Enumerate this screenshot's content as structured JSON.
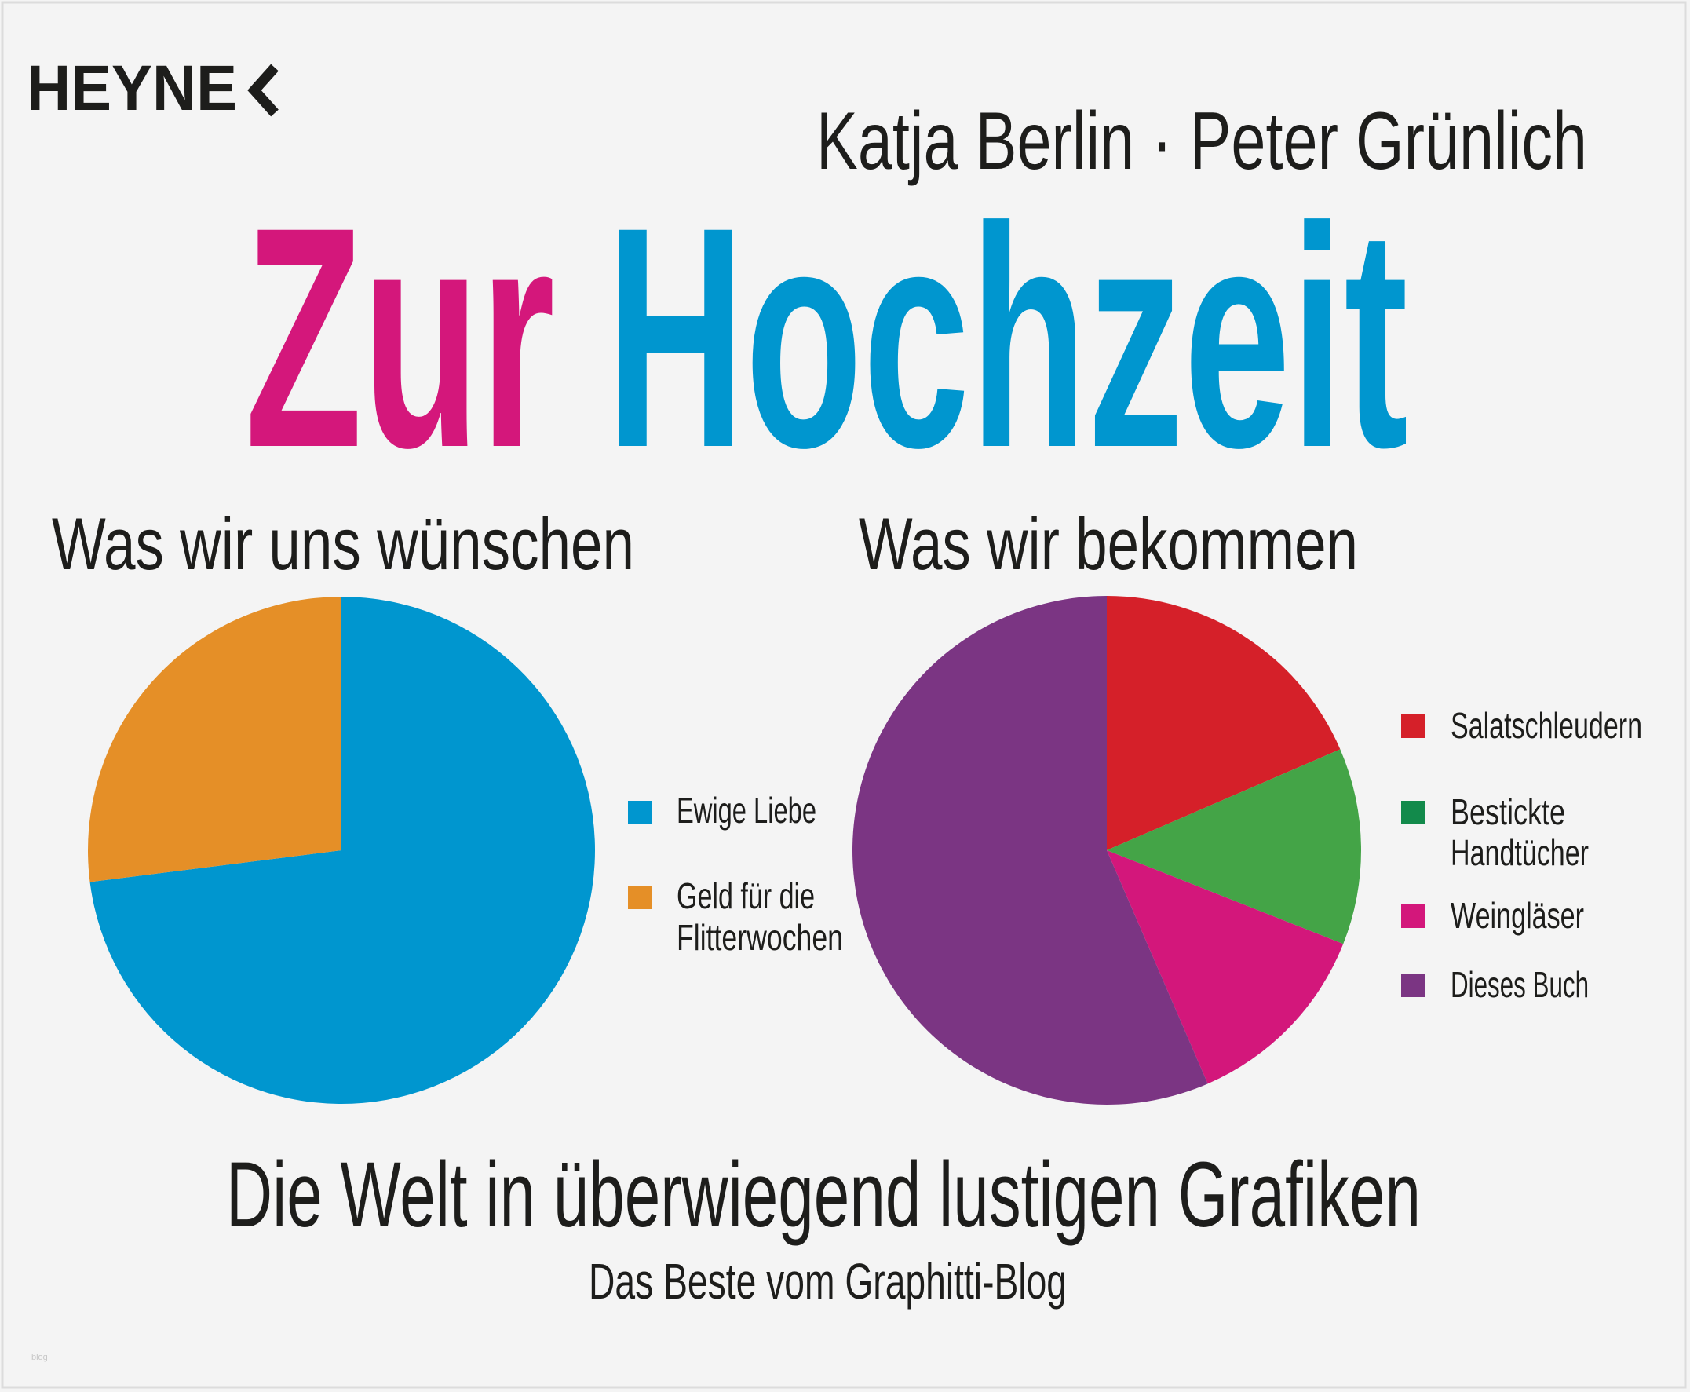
{
  "publisher": "HEYNE",
  "authors": "Katja Berlin · Peter Grünlich",
  "title": {
    "part1": "Zur",
    "part2": "Hochzeit",
    "color1": "#d4177b",
    "color2": "#0096cf"
  },
  "subtitle": "Die Welt in überwiegend lustigen Grafiken",
  "tagline": "Das Beste vom Graphitti-Blog",
  "watermark": "blog",
  "chart_data": [
    {
      "type": "pie",
      "title": "Was wir uns wünschen",
      "labels": [
        "Ewige Liebe",
        "Geld für die Flitterwochen"
      ],
      "legend_lines": [
        [
          "Ewige Liebe"
        ],
        [
          "Geld für die",
          "Flitterwochen"
        ]
      ],
      "values": [
        73,
        27
      ],
      "colors": [
        "#0096cf",
        "#e58f27"
      ],
      "legend": "right"
    },
    {
      "type": "pie",
      "title": "Was wir bekommen",
      "labels": [
        "Salatschleudern",
        "Bestickte Handtücher",
        "Weingläser",
        "Dieses Buch"
      ],
      "legend_lines": [
        [
          "Salatschleudern"
        ],
        [
          "Bestickte",
          "Handtücher"
        ],
        [
          "Weingläser"
        ],
        [
          "Dieses Buch"
        ]
      ],
      "values": [
        18.5,
        12.5,
        12.5,
        56.5
      ],
      "colors": [
        "#d52029",
        "#44a447",
        "#d3177b",
        "#7b3583"
      ],
      "legend_colors": [
        "#d52029",
        "#128a4b",
        "#d3177b",
        "#7b3583"
      ],
      "legend": "right"
    }
  ]
}
